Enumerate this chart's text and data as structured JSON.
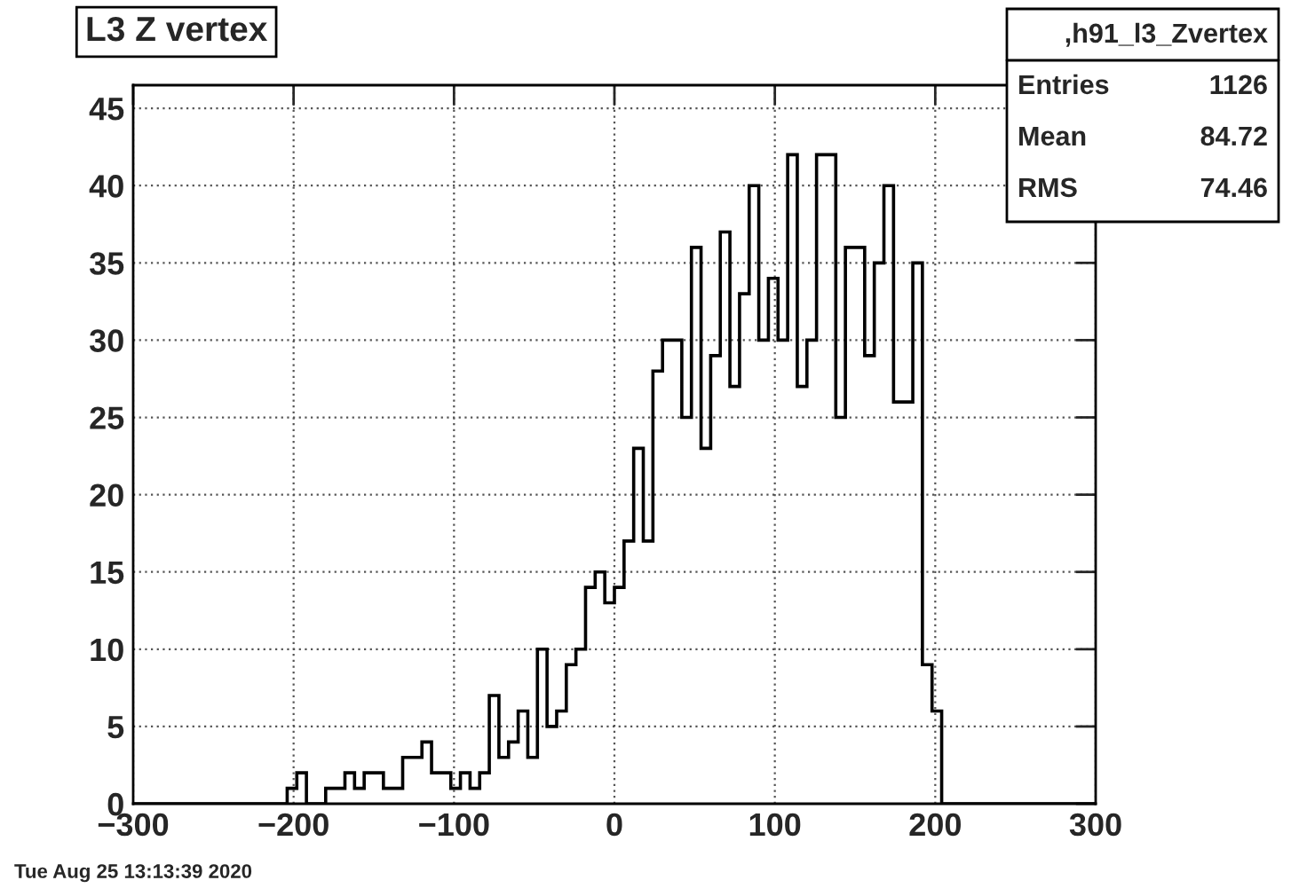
{
  "chart_data": {
    "type": "histogram",
    "title": "L3 Z vertex",
    "bins": [
      -300,
      -294,
      -288,
      -282,
      -276,
      -270,
      -264,
      -258,
      -252,
      -246,
      -240,
      -234,
      -228,
      -222,
      -216,
      -210,
      -204,
      -198,
      -192,
      -186,
      -180,
      -174,
      -168,
      -162,
      -156,
      -150,
      -144,
      -138,
      -132,
      -126,
      -120,
      -114,
      -108,
      -102,
      -96,
      -90,
      -84,
      -78,
      -72,
      -66,
      -60,
      -54,
      -48,
      -42,
      -36,
      -30,
      -24,
      -18,
      -12,
      -6,
      0,
      6,
      12,
      18,
      24,
      30,
      36,
      42,
      48,
      54,
      60,
      66,
      72,
      78,
      84,
      90,
      96,
      102,
      108,
      114,
      120,
      126,
      132,
      138,
      144,
      150,
      156,
      162,
      168,
      174,
      180,
      186,
      192,
      198,
      204,
      210,
      216,
      222,
      228,
      234,
      240,
      246,
      252,
      258,
      264,
      270,
      276,
      282,
      288,
      294,
      300
    ],
    "values": [
      0,
      0,
      0,
      0,
      0,
      0,
      0,
      0,
      0,
      0,
      0,
      0,
      0,
      0,
      0,
      0,
      1,
      2,
      0,
      0,
      1,
      1,
      2,
      1,
      2,
      2,
      1,
      1,
      3,
      3,
      4,
      2,
      2,
      1,
      2,
      1,
      2,
      7,
      3,
      4,
      6,
      3,
      10,
      5,
      6,
      9,
      10,
      14,
      15,
      13,
      14,
      17,
      23,
      17,
      28,
      30,
      30,
      25,
      36,
      23,
      29,
      37,
      27,
      33,
      40,
      30,
      34,
      30,
      42,
      27,
      30,
      42,
      42,
      25,
      36,
      36,
      29,
      35,
      40,
      26,
      26,
      35,
      9,
      6,
      0,
      0,
      0,
      0,
      0,
      0,
      0,
      0,
      0,
      0,
      0,
      0,
      0,
      0,
      0,
      0
    ],
    "color": "#000000",
    "xlim": [
      -300,
      300
    ],
    "xticks": [
      {
        "value": -300,
        "label": "−300"
      },
      {
        "value": -200,
        "label": "−200"
      },
      {
        "value": -100,
        "label": "−100"
      },
      0,
      100,
      200,
      300
    ],
    "ylim": [
      0,
      46.5
    ],
    "yticks": [
      0,
      5,
      10,
      15,
      20,
      25,
      30,
      35,
      40,
      45
    ],
    "grid": true,
    "annotations": [
      ",h91_l3_Zvertex",
      "Entries",
      "1126",
      "Mean",
      "84.72",
      "RMS",
      "74.46",
      "Tue Aug 25 13:13:39 2020"
    ]
  }
}
